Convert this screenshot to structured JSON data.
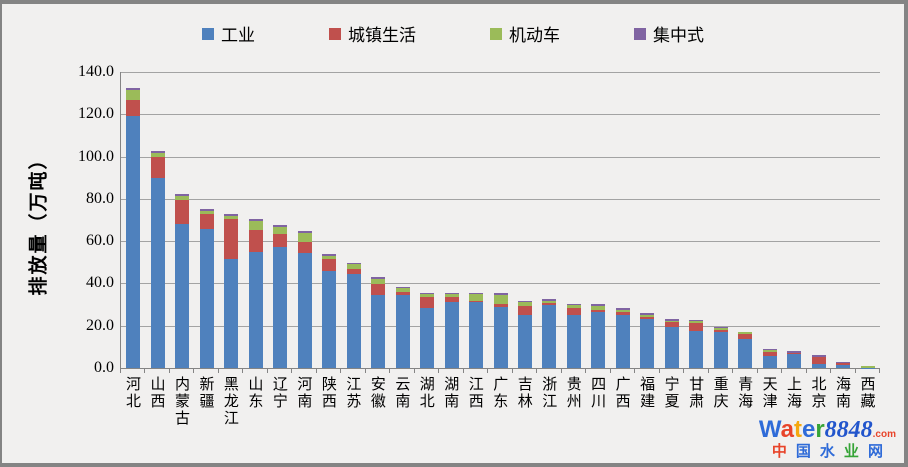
{
  "y_axis": {
    "title": "排放量（万吨）",
    "tick_labels": [
      "140.0",
      "120.0",
      "100.0",
      "80.0",
      "60.0",
      "40.0",
      "20.0",
      "0.0"
    ],
    "min": 0,
    "max": 140,
    "step": 20
  },
  "chart_data": {
    "type": "bar",
    "stacked": true,
    "title": "",
    "xlabel": "",
    "ylabel": "排放量（万吨）",
    "ylim": [
      0,
      140
    ],
    "grid": true,
    "legend_position": "top",
    "categories": [
      "河北",
      "山西",
      "内蒙古",
      "新疆",
      "黑龙江",
      "山东",
      "辽宁",
      "河南",
      "陕西",
      "江苏",
      "安徽",
      "云南",
      "湖北",
      "湖南",
      "江西",
      "广东",
      "吉林",
      "浙江",
      "贵州",
      "四川",
      "广西",
      "福建",
      "宁夏",
      "甘肃",
      "重庆",
      "青海",
      "天津",
      "上海",
      "北京",
      "海南",
      "西藏"
    ],
    "series": [
      {
        "name": "工业",
        "color": "#4F81BD",
        "values": [
          119.0,
          89.8,
          68.1,
          65.7,
          51.4,
          55.0,
          57.4,
          54.6,
          46.1,
          44.4,
          34.6,
          34.6,
          28.6,
          31.2,
          31.2,
          28.8,
          24.9,
          29.9,
          24.9,
          26.3,
          25.2,
          23.1,
          19.6,
          17.4,
          17.1,
          13.5,
          5.9,
          6.6,
          1.9,
          1.4,
          0.1
        ]
      },
      {
        "name": "城镇生活",
        "color": "#C0504D",
        "values": [
          7.8,
          10.2,
          11.5,
          7.1,
          19.0,
          10.1,
          6.1,
          5.2,
          5.4,
          2.4,
          5.2,
          1.3,
          5.2,
          2.6,
          0.7,
          1.4,
          4.5,
          0.8,
          3.6,
          1.2,
          1.1,
          1.1,
          2.0,
          3.9,
          0.8,
          2.7,
          1.9,
          0.4,
          3.2,
          1.0,
          0.0
        ]
      },
      {
        "name": "机动车",
        "color": "#9BBB59",
        "values": [
          4.8,
          1.9,
          1.9,
          1.6,
          1.6,
          4.4,
          3.2,
          4.3,
          1.6,
          2.3,
          2.4,
          1.9,
          1.2,
          1.2,
          3.1,
          4.4,
          1.8,
          1.1,
          1.1,
          1.8,
          1.1,
          1.1,
          0.8,
          0.8,
          0.8,
          0.9,
          0.7,
          0.3,
          0.3,
          0.1,
          1.0
        ]
      },
      {
        "name": "集中式",
        "color": "#8064A2",
        "values": [
          0.8,
          0.8,
          0.8,
          0.8,
          0.8,
          0.8,
          0.8,
          0.8,
          0.8,
          0.8,
          0.8,
          0.7,
          0.7,
          0.7,
          0.7,
          0.8,
          0.7,
          0.8,
          0.8,
          0.8,
          0.8,
          0.8,
          0.8,
          0.8,
          0.8,
          0.1,
          0.7,
          0.6,
          0.7,
          0.5,
          0.0
        ]
      }
    ]
  },
  "watermark": {
    "line1": [
      {
        "t": "W",
        "c": "#2f6bd8",
        "cls": "word"
      },
      {
        "t": "a",
        "c": "#e8442a",
        "cls": "word"
      },
      {
        "t": "t",
        "c": "#f5a80f",
        "cls": "word"
      },
      {
        "t": "e",
        "c": "#2f6bd8",
        "cls": "word"
      },
      {
        "t": "r",
        "c": "#36a437",
        "cls": "word"
      },
      {
        "t": "8848",
        "c": "#2255cc",
        "cls": "num"
      },
      {
        "t": ".com",
        "c": "#e8442a",
        "cls": "dotcom"
      }
    ],
    "line2": [
      {
        "t": "中",
        "c": "#e8442a"
      },
      {
        "t": "国",
        "c": "#2f6bd8"
      },
      {
        "t": "水",
        "c": "#2f6bd8"
      },
      {
        "t": "业",
        "c": "#36a437"
      },
      {
        "t": "网",
        "c": "#2f6bd8"
      }
    ]
  }
}
